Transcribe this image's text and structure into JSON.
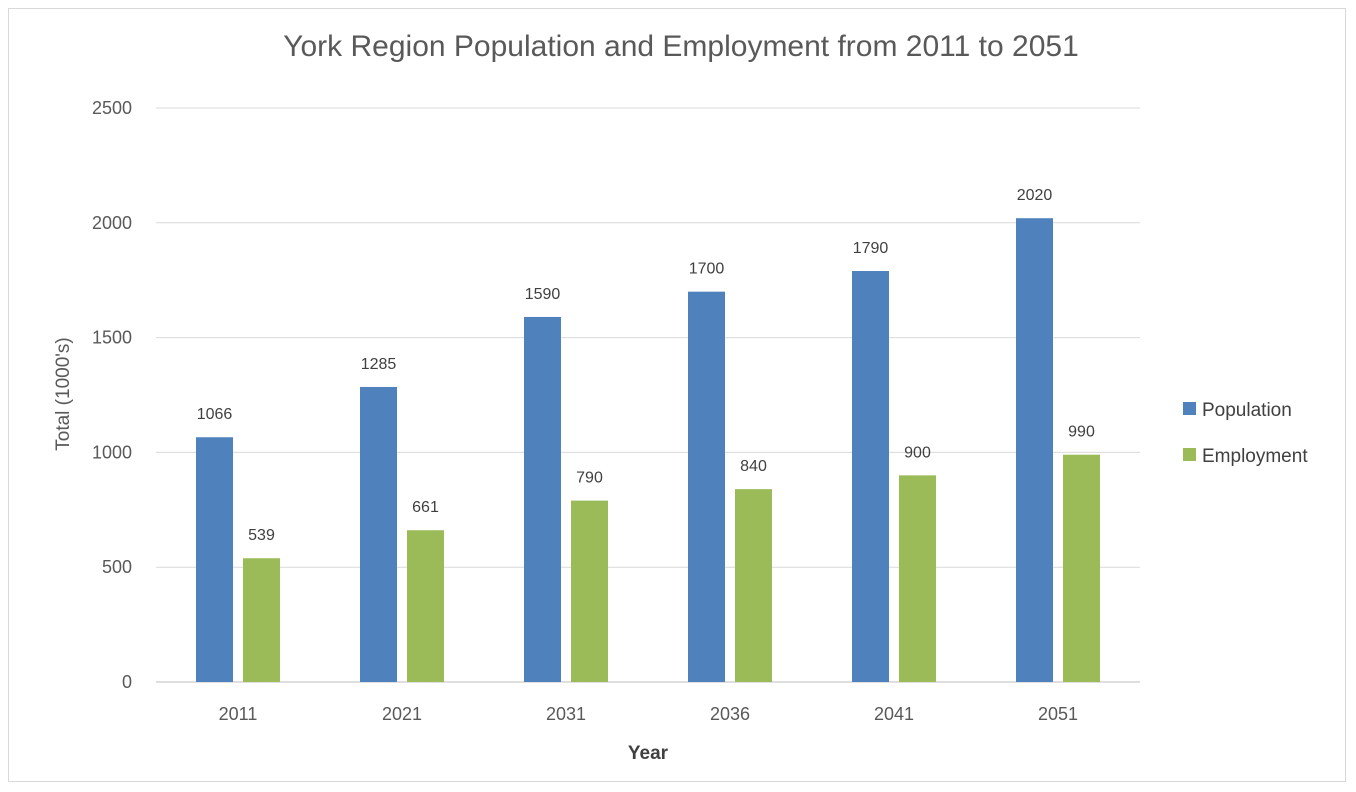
{
  "chart_data": {
    "type": "bar",
    "title": "York Region Population and Employment from 2011 to 2051",
    "xlabel": "Year",
    "ylabel": "Total (1000's)",
    "categories": [
      "2011",
      "2021",
      "2031",
      "2036",
      "2041",
      "2051"
    ],
    "series": [
      {
        "name": "Population",
        "values": [
          1066,
          1285,
          1590,
          1700,
          1790,
          2020
        ],
        "color": "#4f81bd"
      },
      {
        "name": "Employment",
        "values": [
          539,
          661,
          790,
          840,
          900,
          990
        ],
        "color": "#9bbb59"
      }
    ],
    "ylim": [
      0,
      2500
    ],
    "yticks": [
      0,
      500,
      1000,
      1500,
      2000,
      2500
    ],
    "grid": true,
    "legend_position": "right",
    "data_labels": true
  }
}
